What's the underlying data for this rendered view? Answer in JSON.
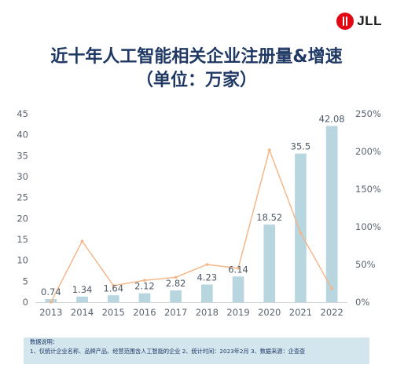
{
  "logo": {
    "text": "JLL"
  },
  "title": {
    "line1": "近十年人工智能相关企业注册量&增速",
    "line2": "（单位：万家）"
  },
  "chart_data": {
    "type": "bar",
    "categories": [
      "2013",
      "2014",
      "2015",
      "2016",
      "2017",
      "2018",
      "2019",
      "2020",
      "2021",
      "2022"
    ],
    "series": [
      {
        "type": "bar",
        "axis": "left",
        "values": [
          0.74,
          1.34,
          1.64,
          2.12,
          2.82,
          4.23,
          6.14,
          18.52,
          35.5,
          42.08
        ],
        "color": "#b8d6df"
      },
      {
        "type": "line",
        "axis": "right",
        "values": [
          0,
          81,
          22,
          29,
          33,
          50,
          45,
          202,
          92,
          18
        ],
        "color": "#f6b383"
      }
    ],
    "data_labels": [
      "0.74",
      "1.34",
      "1.64",
      "2.12",
      "2.82",
      "4.23",
      "6.14",
      "18.52",
      "35.5",
      "42.08"
    ],
    "y_left": {
      "ticks": [
        "0",
        "5",
        "10",
        "15",
        "20",
        "25",
        "30",
        "35",
        "40",
        "45"
      ],
      "range": [
        0,
        45
      ]
    },
    "y_right": {
      "ticks": [
        "0%",
        "50%",
        "100%",
        "150%",
        "200%",
        "250%"
      ],
      "range": [
        0,
        250
      ]
    },
    "grid": false,
    "legend": "none"
  },
  "notes": {
    "heading": "数据说明：",
    "body": "1、仅统计企业名称、品牌产品、经营范围含人工智能的企业 2、统计时间：2023年2月 3、数据来源：企查查"
  }
}
